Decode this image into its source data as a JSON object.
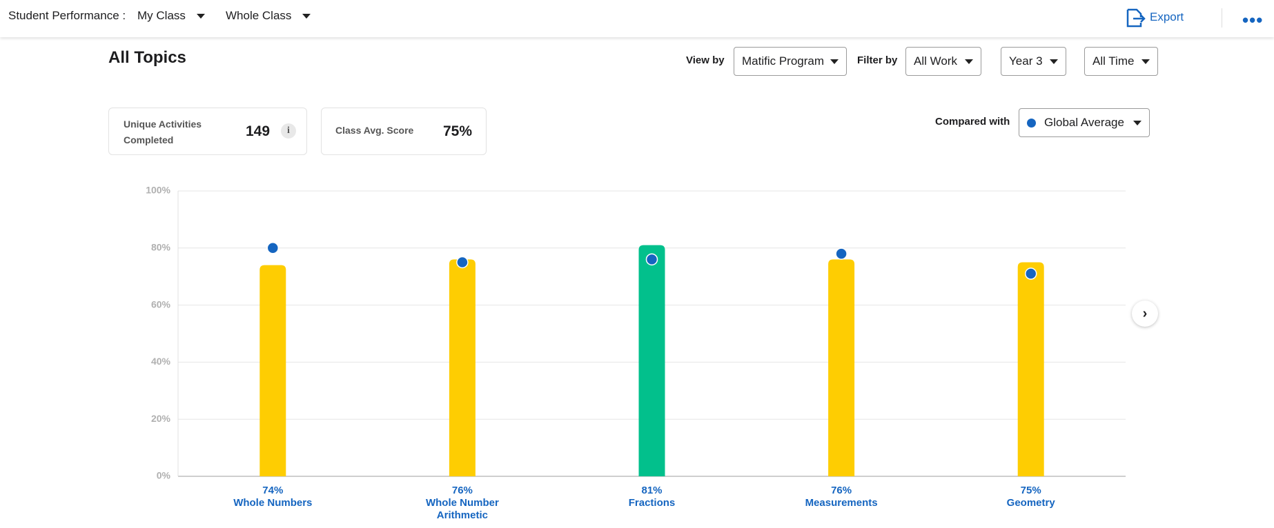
{
  "header": {
    "label": "Student Performance :",
    "class_select": "My Class",
    "group_select": "Whole Class",
    "export": "Export"
  },
  "page_title": "All Topics",
  "filters": {
    "view_by_label": "View by",
    "view_by": "Matific Program",
    "filter_by_label": "Filter by",
    "work": "All Work",
    "year": "Year 3",
    "time": "All Time"
  },
  "stats": [
    {
      "label": "Unique Activities Completed",
      "value": 149
    },
    {
      "label": "Class Avg. Score",
      "value": "75%"
    }
  ],
  "compared_with_label": "Compared with",
  "chart_data": {
    "type": "bar",
    "categories": [
      "Whole Numbers",
      "Whole Number Arithmetic",
      "Fractions",
      "Measurements",
      "Geometry"
    ],
    "series": [
      {
        "values": [
          74,
          76,
          81,
          76,
          75
        ],
        "value_labels": [
          "74%",
          "76%",
          "81%",
          "76%",
          "75%"
        ],
        "colors": [
          "#fecd02",
          "#fecd02",
          "#02c08c",
          "#fecd02",
          "#fecd02"
        ]
      },
      {
        "name": "Global Average",
        "color": "#1565c0",
        "values": [
          80,
          75,
          76,
          78,
          71
        ]
      }
    ],
    "ylim": [
      0,
      100
    ],
    "yticks": [
      {
        "value": 0,
        "label": "0%"
      },
      {
        "value": 20,
        "label": "20%"
      },
      {
        "value": 40,
        "label": "40%"
      },
      {
        "value": 60,
        "label": "60%"
      },
      {
        "value": 80,
        "label": "80%"
      },
      {
        "value": 100,
        "label": "100%"
      }
    ],
    "grid": true
  }
}
